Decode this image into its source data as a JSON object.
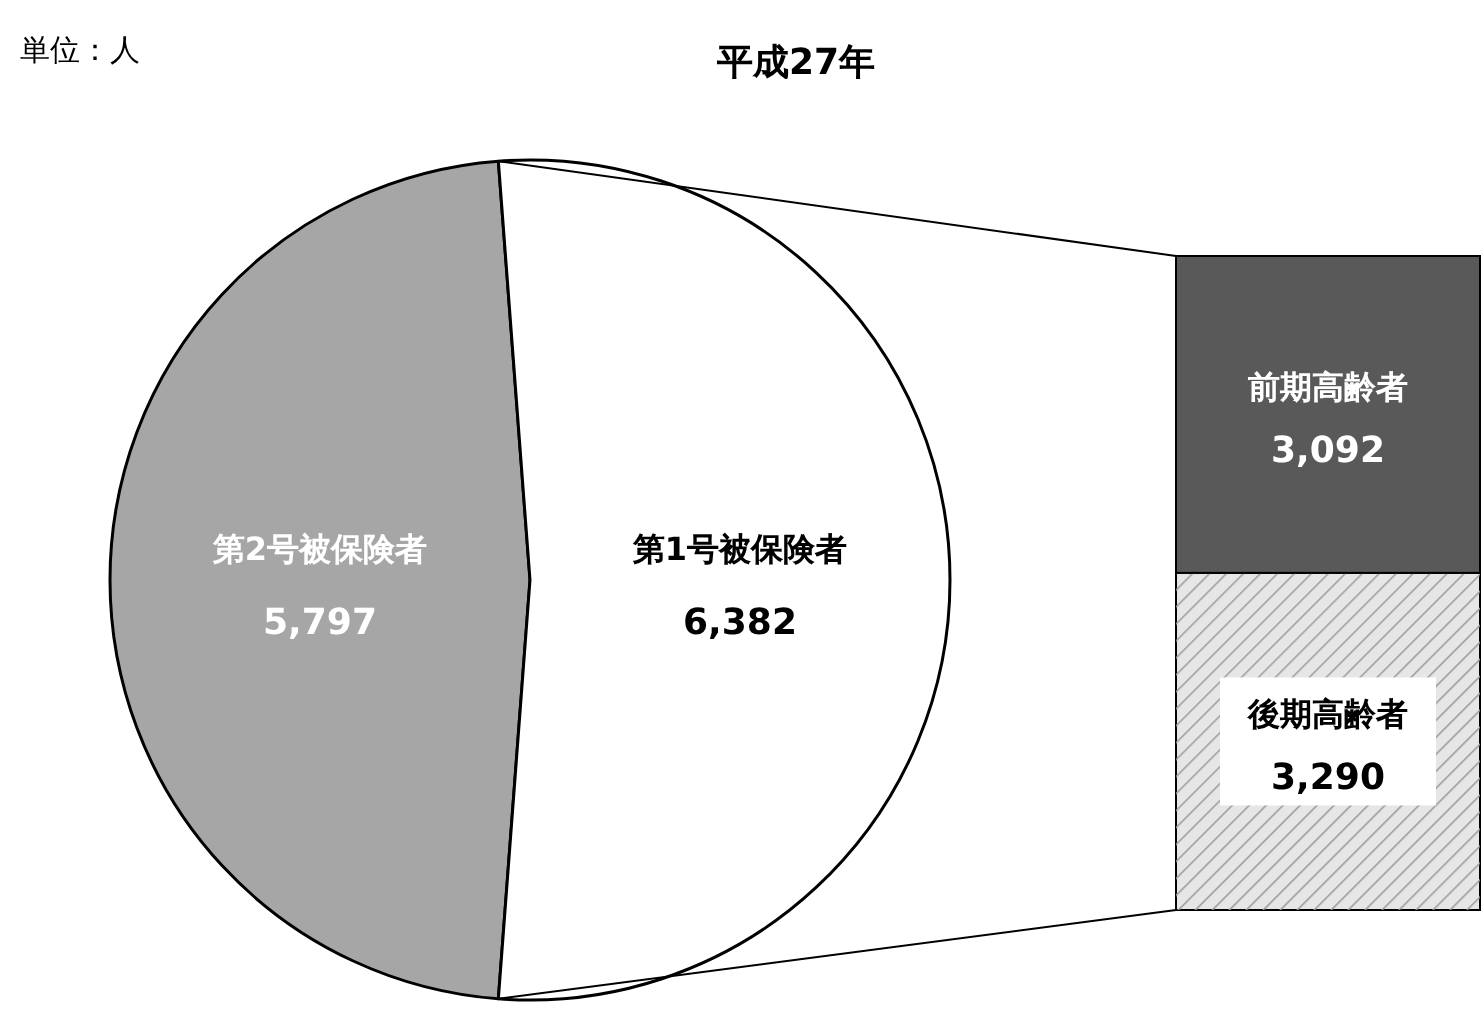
{
  "chart_data": [
    {
      "type": "pie",
      "title": "平成27年",
      "annotations": [
        "単位：人"
      ],
      "categories": [
        "第2号被保険者",
        "第1号被保険者"
      ],
      "values": [
        5797,
        6382
      ],
      "value_labels": [
        "5,797",
        "6,382"
      ],
      "colors": [
        "#a6a6a6",
        "#ffffff"
      ]
    },
    {
      "type": "bar",
      "stacked": true,
      "categories": [
        null
      ],
      "series": [
        {
          "name": "後期高齢者",
          "color": "#e6e6e6",
          "values": [
            3290
          ],
          "value_labels": [
            "3,290"
          ]
        },
        {
          "name": "前期高齢者",
          "color": "#595959",
          "values": [
            3092
          ],
          "value_labels": [
            "3,092"
          ]
        }
      ]
    }
  ]
}
